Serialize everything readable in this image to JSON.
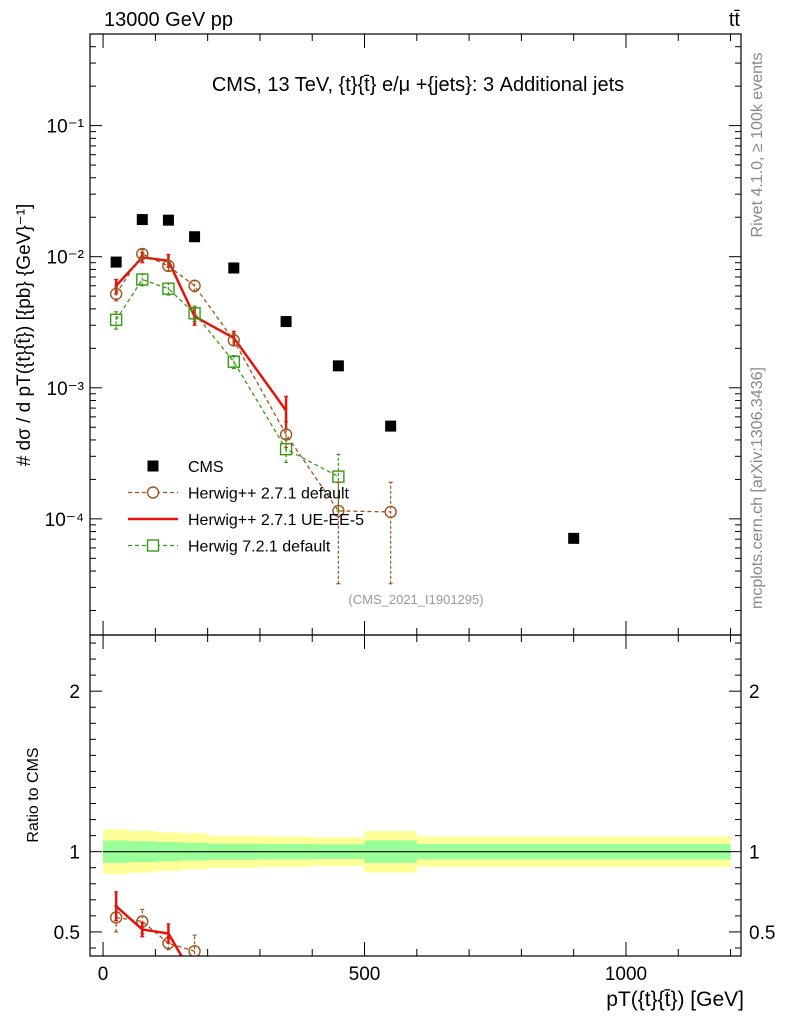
{
  "header": {
    "left": "13000 GeV pp",
    "right": "tt̄"
  },
  "side_labels": {
    "rivet": "Rivet 4.1.0, ≥ 100k events",
    "mcplots": "mcplots.cern.ch [arXiv:1306.3436]"
  },
  "chart_data": [
    {
      "type": "scatter",
      "title": "CMS, 13 TeV, {t}{t̄} e/μ +{jets}: 3 Additional jets",
      "ylabel": "# dσ / d pT({t}{t̄}) [{pb} {GeV}⁻¹]",
      "xlabel": "pT({t}{t̄}) [GeV]",
      "yscale": "log",
      "ylim": [
        1.3e-05,
        0.5
      ],
      "xlim": [
        -25,
        1220
      ],
      "y_ticks": [
        {
          "v": 0.1,
          "label": "10⁻¹"
        },
        {
          "v": 0.01,
          "label": "10⁻²"
        },
        {
          "v": 0.001,
          "label": "10⁻³"
        },
        {
          "v": 0.0001,
          "label": "10⁻⁴"
        }
      ],
      "watermark": "(CMS_2021_I1901295)",
      "legend_position": "lower-left",
      "series": [
        {
          "name": "CMS",
          "style": "marker",
          "color": "#000000",
          "x": [
            25,
            75,
            125,
            175,
            250,
            350,
            450,
            550,
            900
          ],
          "y": [
            0.0091,
            0.0192,
            0.019,
            0.0142,
            0.0082,
            0.0032,
            0.00147,
            0.00051,
            7.1e-05
          ]
        },
        {
          "name": "Herwig++ 2.7.1 default",
          "style": "dashed-circle",
          "color": "#a0541e",
          "x": [
            25,
            75,
            125,
            175,
            250,
            350,
            450,
            550
          ],
          "y": [
            0.0052,
            0.0105,
            0.0085,
            0.006,
            0.0023,
            0.00044,
            0.000115,
            0.000113
          ],
          "err_lo": [
            0.0046,
            0.0097,
            0.0078,
            0.0054,
            0.0021,
            0.00035,
            3.2e-05,
            3.2e-05
          ],
          "err_hi": [
            0.0059,
            0.0113,
            0.0092,
            0.0066,
            0.0026,
            0.00055,
            0.00019,
            0.00019
          ]
        },
        {
          "name": "Herwig++ 2.7.1 UE-EE-5",
          "style": "solid",
          "color": "#e8120c",
          "x": [
            25,
            75,
            125,
            175,
            250,
            350
          ],
          "y": [
            0.006,
            0.0099,
            0.0093,
            0.0035,
            0.0024,
            0.00067
          ],
          "err_lo": [
            0.0052,
            0.009,
            0.0083,
            0.003,
            0.0021,
            0.00048
          ],
          "err_hi": [
            0.0067,
            0.0108,
            0.0104,
            0.0041,
            0.0027,
            0.00086
          ]
        },
        {
          "name": "Herwig 7.2.1 default",
          "style": "dashed-square",
          "color": "#3a9a15",
          "x": [
            25,
            75,
            125,
            175,
            250,
            350,
            450
          ],
          "y": [
            0.0033,
            0.0067,
            0.0057,
            0.0037,
            0.00158,
            0.00034,
            0.00021
          ],
          "err_lo": [
            0.0028,
            0.006,
            0.0051,
            0.0032,
            0.0014,
            0.00027,
            0.000115
          ],
          "err_hi": [
            0.0038,
            0.0074,
            0.0063,
            0.0042,
            0.00176,
            0.00041,
            0.00031
          ]
        }
      ]
    },
    {
      "type": "line",
      "ylabel": "Ratio to CMS",
      "ylim": [
        0.35,
        2.35
      ],
      "y_ticks": [
        {
          "v": 0.5,
          "label": "0.5"
        },
        {
          "v": 1,
          "label": "1"
        },
        {
          "v": 2,
          "label": "2"
        }
      ],
      "x_ticks": [
        {
          "v": 0,
          "label": "0"
        },
        {
          "v": 500,
          "label": "500"
        },
        {
          "v": 1000,
          "label": "1000"
        }
      ],
      "bands": {
        "edges": [
          0,
          50,
          100,
          150,
          200,
          300,
          400,
          500,
          600,
          1200
        ],
        "yellow_lo": [
          0.86,
          0.87,
          0.88,
          0.89,
          0.9,
          0.905,
          0.91,
          0.87,
          0.905
        ],
        "yellow_hi": [
          1.14,
          1.13,
          1.12,
          1.115,
          1.1,
          1.095,
          1.09,
          1.13,
          1.095
        ],
        "green_lo": [
          0.93,
          0.935,
          0.94,
          0.945,
          0.95,
          0.952,
          0.955,
          0.93,
          0.952
        ],
        "green_hi": [
          1.07,
          1.065,
          1.06,
          1.055,
          1.05,
          1.048,
          1.045,
          1.07,
          1.048
        ]
      },
      "series": [
        {
          "name": "Herwig++ 2.7.1 default",
          "style": "dashed-circle",
          "color": "#a0541e",
          "x": [
            25,
            75,
            125,
            175
          ],
          "y": [
            0.59,
            0.565,
            0.43,
            0.38
          ],
          "err_lo": [
            0.5,
            0.49,
            0.39,
            0.33
          ],
          "err_hi": [
            0.66,
            0.64,
            0.47,
            0.48
          ]
        },
        {
          "name": "Herwig++ 2.7.1 UE-EE-5",
          "style": "solid",
          "color": "#e8120c",
          "x": [
            25,
            75,
            125,
            150
          ],
          "y": [
            0.66,
            0.515,
            0.49,
            0.35
          ],
          "err_lo": [
            0.57,
            0.47,
            0.43,
            0.35
          ],
          "err_hi": [
            0.75,
            0.56,
            0.55,
            0.35
          ]
        }
      ]
    }
  ]
}
